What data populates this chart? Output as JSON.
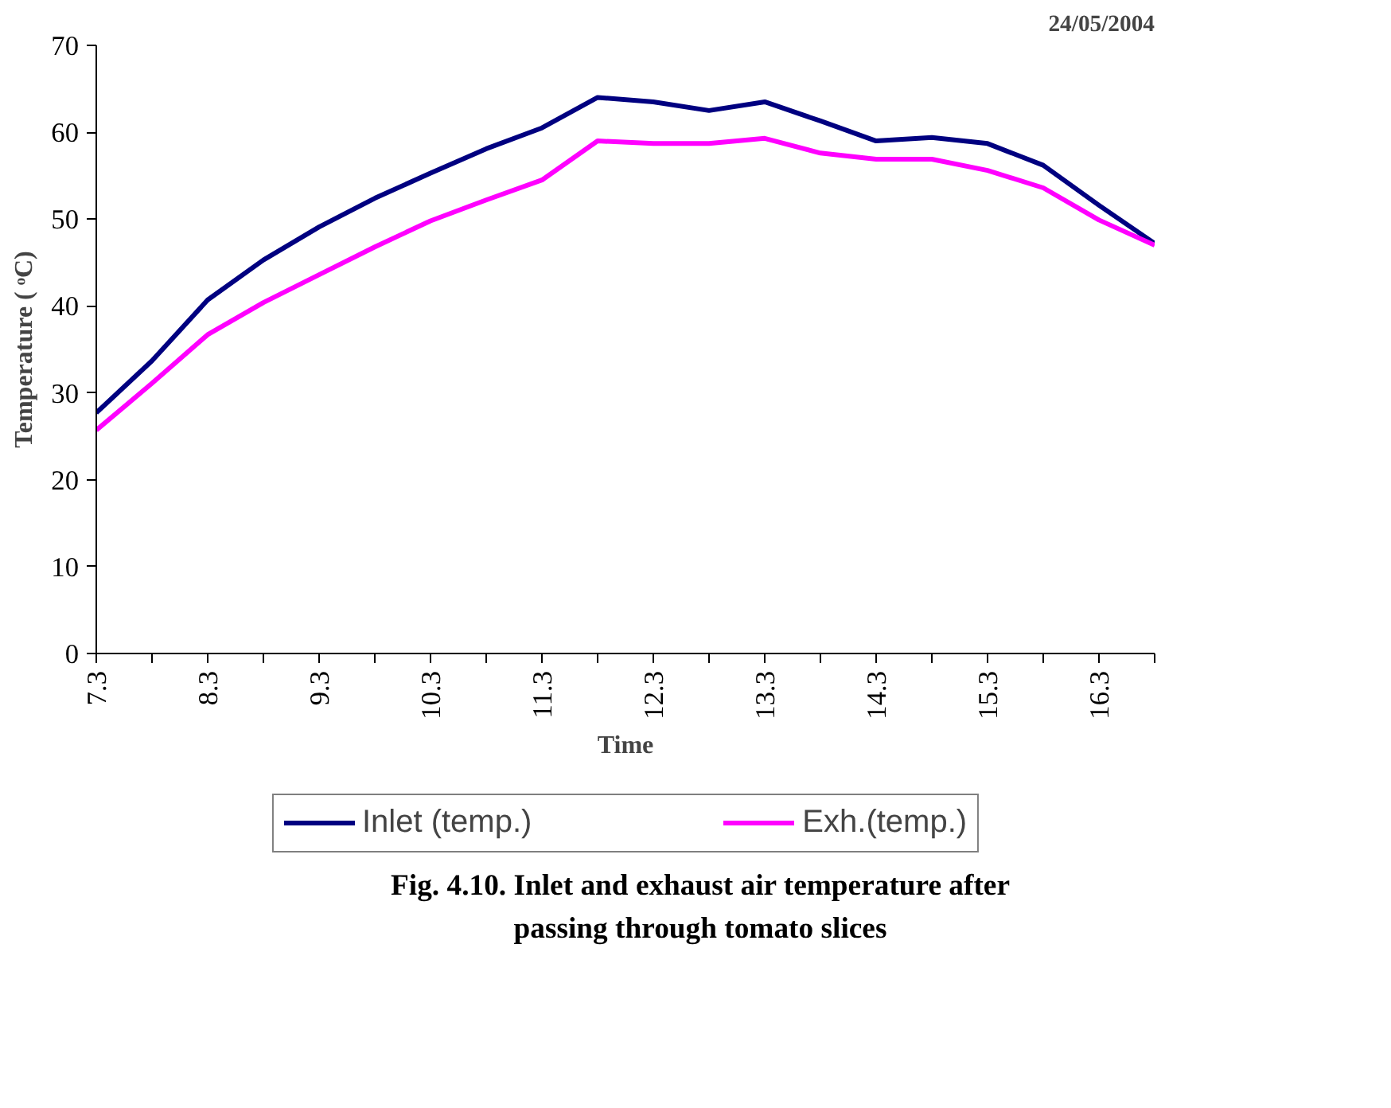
{
  "chart_data": {
    "type": "line",
    "xlabel": "Time",
    "ylabel": "Temperature ( ᵒC)",
    "categories": [
      "7.3",
      null,
      "8.3",
      null,
      "9.3",
      null,
      "10.3",
      null,
      "11.3",
      null,
      "12.3",
      null,
      "13.3",
      null,
      "14.3",
      null,
      "15.3",
      null,
      "16.3",
      null
    ],
    "series": [
      {
        "name": "Inlet (temp.)",
        "color": "#000080",
        "values": [
          27.7,
          33.7,
          40.7,
          45.3,
          49.1,
          52.4,
          55.3,
          58.1,
          60.5,
          64.0,
          63.5,
          62.5,
          63.5,
          61.3,
          59.0,
          59.4,
          58.7,
          56.2,
          51.6,
          47.2
        ]
      },
      {
        "name": "Exh.(temp.)",
        "color": "#ff00ff",
        "values": [
          25.7,
          31.1,
          36.7,
          40.4,
          43.6,
          46.8,
          49.8,
          52.2,
          54.5,
          59.0,
          58.7,
          58.7,
          59.3,
          57.6,
          56.9,
          56.9,
          55.6,
          53.6,
          49.9,
          47.0
        ]
      }
    ],
    "ylim": [
      0,
      70
    ],
    "yticks": [
      0,
      10,
      20,
      30,
      40,
      50,
      60,
      70
    ],
    "grid": false,
    "legend": "bottom",
    "marker": "none",
    "line_style": "solid",
    "annotations": [
      "24/05/2004",
      "Fig. 4.10. Inlet and exhaust air temperature after passing through tomato slices"
    ]
  }
}
